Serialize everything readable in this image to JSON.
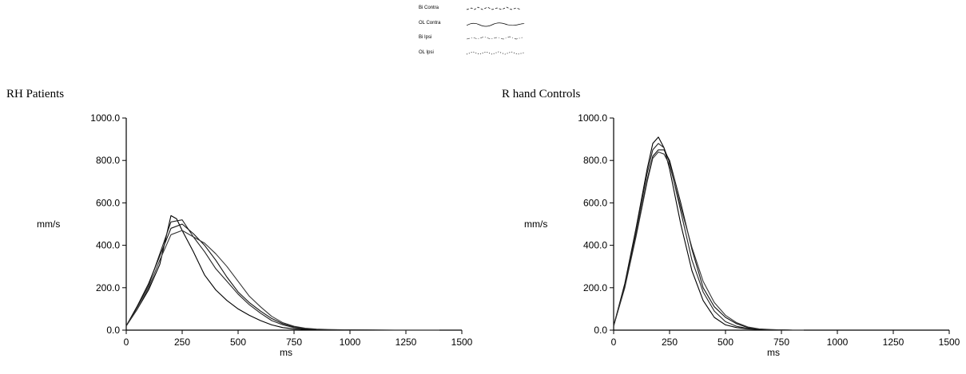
{
  "legend": [
    {
      "label": "Bi Contra",
      "pattern": "dash-dot"
    },
    {
      "label": "OL Contra",
      "pattern": "wave"
    },
    {
      "label": "Bi Ipsi",
      "pattern": "dash-dot-light"
    },
    {
      "label": "OL Ipsi",
      "pattern": "star"
    }
  ],
  "chart_data": [
    {
      "type": "line",
      "title": "RH Patients",
      "xlabel": "ms",
      "ylabel": "mm/s",
      "xlim": [
        0,
        1500
      ],
      "ylim": [
        0,
        1000
      ],
      "xticks": [
        "0",
        "250",
        "500",
        "750",
        "1000",
        "1250",
        "1500"
      ],
      "yticks": [
        "0.0",
        "200.0",
        "400.0",
        "600.0",
        "800.0",
        "1000.0"
      ],
      "grid": false,
      "series": [
        {
          "x": [
            0,
            50,
            100,
            150,
            200,
            225,
            250,
            300,
            350,
            400,
            450,
            500,
            550,
            600,
            650,
            700,
            750,
            800,
            850,
            900,
            1000,
            1100,
            1200,
            1300,
            1400
          ],
          "values": [
            20,
            100,
            190,
            310,
            540,
            525,
            470,
            370,
            260,
            190,
            140,
            100,
            70,
            45,
            25,
            12,
            6,
            3,
            2,
            1,
            0,
            0,
            0,
            0,
            0
          ]
        },
        {
          "x": [
            0,
            50,
            100,
            150,
            200,
            250,
            300,
            350,
            400,
            450,
            500,
            550,
            600,
            650,
            700,
            750,
            800,
            850,
            900,
            1000,
            1100,
            1200,
            1300,
            1400
          ],
          "values": [
            20,
            110,
            210,
            360,
            510,
            520,
            440,
            370,
            290,
            230,
            170,
            120,
            80,
            45,
            25,
            12,
            6,
            3,
            2,
            1,
            0,
            0,
            0,
            0
          ]
        },
        {
          "x": [
            0,
            50,
            100,
            150,
            200,
            250,
            300,
            350,
            400,
            450,
            500,
            550,
            600,
            650,
            700,
            750,
            800,
            850,
            900,
            1000,
            1100,
            1200,
            1300,
            1400
          ],
          "values": [
            20,
            115,
            220,
            350,
            480,
            500,
            455,
            400,
            330,
            250,
            180,
            130,
            90,
            55,
            30,
            15,
            8,
            4,
            2,
            1,
            0,
            0,
            0,
            0
          ]
        },
        {
          "x": [
            0,
            50,
            100,
            150,
            200,
            250,
            300,
            350,
            400,
            450,
            500,
            550,
            600,
            650,
            700,
            750,
            800,
            850,
            900,
            1000,
            1100,
            1200,
            1300,
            1400
          ],
          "values": [
            20,
            100,
            200,
            330,
            450,
            470,
            440,
            410,
            360,
            300,
            230,
            160,
            110,
            65,
            35,
            18,
            9,
            5,
            3,
            1,
            1,
            0,
            0,
            0
          ]
        }
      ]
    },
    {
      "type": "line",
      "title": "R hand Controls",
      "xlabel": "ms",
      "ylabel": "mm/s",
      "xlim": [
        0,
        1500
      ],
      "ylim": [
        0,
        1000
      ],
      "xticks": [
        "0",
        "250",
        "500",
        "750",
        "1000",
        "1250",
        "1500"
      ],
      "yticks": [
        "0.0",
        "200.0",
        "400.0",
        "600.0",
        "800.0",
        "1000.0"
      ],
      "grid": false,
      "series": [
        {
          "x": [
            0,
            50,
            100,
            150,
            175,
            200,
            225,
            250,
            300,
            350,
            400,
            450,
            500,
            550,
            600,
            650,
            700,
            750,
            800,
            850
          ],
          "values": [
            20,
            220,
            480,
            760,
            880,
            910,
            860,
            760,
            500,
            280,
            140,
            60,
            25,
            12,
            6,
            3,
            1,
            0,
            0,
            0
          ]
        },
        {
          "x": [
            0,
            50,
            100,
            150,
            175,
            200,
            225,
            250,
            300,
            350,
            400,
            450,
            500,
            550,
            600,
            650,
            700,
            750,
            800,
            850
          ],
          "values": [
            20,
            210,
            470,
            740,
            850,
            880,
            860,
            790,
            560,
            330,
            180,
            90,
            40,
            18,
            8,
            4,
            2,
            1,
            0,
            0
          ]
        },
        {
          "x": [
            0,
            50,
            100,
            150,
            175,
            200,
            225,
            250,
            300,
            350,
            400,
            450,
            500,
            550,
            600,
            650,
            700,
            750,
            800,
            850
          ],
          "values": [
            20,
            205,
            450,
            710,
            820,
            850,
            850,
            800,
            600,
            380,
            200,
            110,
            60,
            30,
            12,
            5,
            2,
            1,
            0,
            0
          ]
        },
        {
          "x": [
            0,
            50,
            100,
            150,
            175,
            200,
            225,
            250,
            300,
            350,
            400,
            450,
            500,
            550,
            600,
            650,
            700,
            750,
            800,
            850
          ],
          "values": [
            20,
            200,
            440,
            700,
            810,
            840,
            830,
            780,
            580,
            390,
            230,
            130,
            70,
            35,
            15,
            6,
            3,
            1,
            0,
            0
          ]
        }
      ]
    }
  ]
}
